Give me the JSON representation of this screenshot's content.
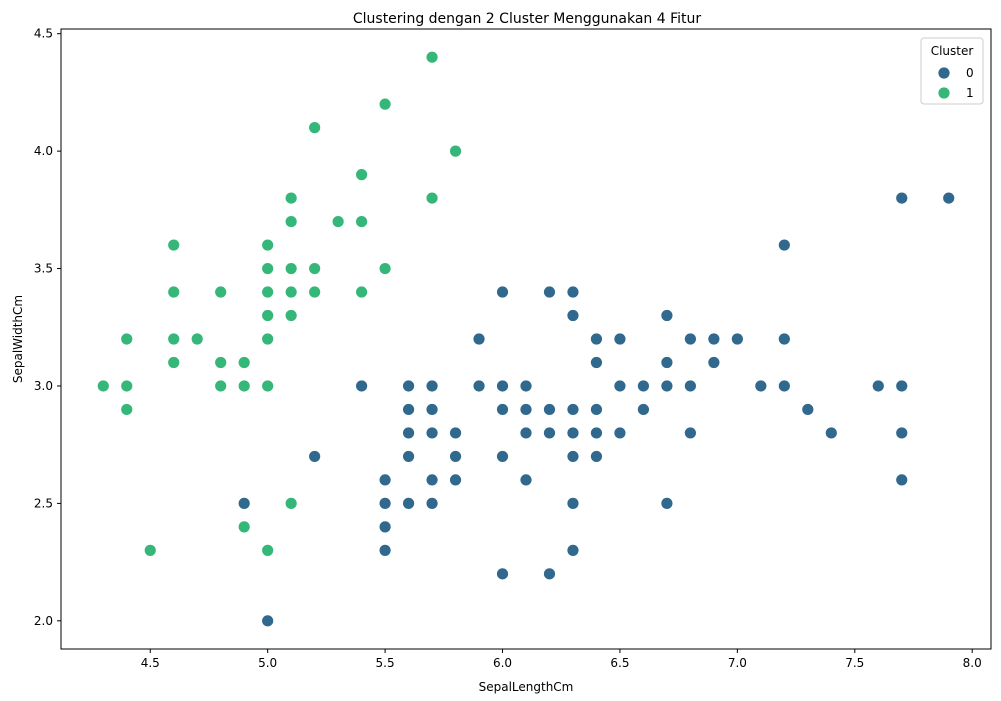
{
  "chart_data": {
    "type": "scatter",
    "title": "Clustering dengan 2 Cluster Menggunakan 4 Fitur",
    "xlabel": "SepalLengthCm",
    "ylabel": "SepalWidthCm",
    "xlim": [
      4.12,
      8.08
    ],
    "ylim": [
      1.88,
      4.52
    ],
    "xticks": [
      "4.5",
      "5.0",
      "5.5",
      "6.0",
      "6.5",
      "7.0",
      "7.5",
      "8.0"
    ],
    "yticks": [
      "2.0",
      "2.5",
      "3.0",
      "3.5",
      "4.0",
      "4.5"
    ],
    "grid": false,
    "legend": {
      "title": "Cluster",
      "position": "top-right"
    },
    "series": [
      {
        "name": "0",
        "color": "#31688e",
        "points": [
          [
            4.9,
            2.5
          ],
          [
            5.0,
            2.0
          ],
          [
            5.2,
            2.7
          ],
          [
            5.4,
            3.0
          ],
          [
            5.5,
            2.3
          ],
          [
            5.5,
            2.4
          ],
          [
            5.5,
            2.5
          ],
          [
            5.5,
            2.6
          ],
          [
            5.6,
            2.5
          ],
          [
            5.6,
            2.7
          ],
          [
            5.6,
            2.8
          ],
          [
            5.6,
            2.9
          ],
          [
            5.6,
            3.0
          ],
          [
            5.7,
            2.5
          ],
          [
            5.7,
            2.6
          ],
          [
            5.7,
            2.8
          ],
          [
            5.7,
            2.9
          ],
          [
            5.7,
            3.0
          ],
          [
            5.8,
            2.6
          ],
          [
            5.8,
            2.7
          ],
          [
            5.8,
            2.8
          ],
          [
            5.9,
            3.0
          ],
          [
            5.9,
            3.2
          ],
          [
            6.0,
            2.2
          ],
          [
            6.0,
            2.7
          ],
          [
            6.0,
            2.9
          ],
          [
            6.0,
            3.0
          ],
          [
            6.0,
            3.4
          ],
          [
            6.1,
            2.6
          ],
          [
            6.1,
            2.8
          ],
          [
            6.1,
            2.9
          ],
          [
            6.1,
            3.0
          ],
          [
            6.2,
            2.2
          ],
          [
            6.2,
            2.8
          ],
          [
            6.2,
            2.9
          ],
          [
            6.2,
            3.4
          ],
          [
            6.3,
            2.3
          ],
          [
            6.3,
            2.5
          ],
          [
            6.3,
            2.7
          ],
          [
            6.3,
            2.8
          ],
          [
            6.3,
            2.9
          ],
          [
            6.3,
            3.3
          ],
          [
            6.3,
            3.4
          ],
          [
            6.4,
            2.7
          ],
          [
            6.4,
            2.8
          ],
          [
            6.4,
            2.9
          ],
          [
            6.4,
            3.1
          ],
          [
            6.4,
            3.2
          ],
          [
            6.5,
            2.8
          ],
          [
            6.5,
            3.0
          ],
          [
            6.5,
            3.2
          ],
          [
            6.6,
            2.9
          ],
          [
            6.6,
            3.0
          ],
          [
            6.7,
            2.5
          ],
          [
            6.7,
            3.0
          ],
          [
            6.7,
            3.1
          ],
          [
            6.7,
            3.3
          ],
          [
            6.8,
            2.8
          ],
          [
            6.8,
            3.0
          ],
          [
            6.8,
            3.2
          ],
          [
            6.9,
            3.1
          ],
          [
            6.9,
            3.2
          ],
          [
            7.0,
            3.2
          ],
          [
            7.1,
            3.0
          ],
          [
            7.2,
            3.0
          ],
          [
            7.2,
            3.2
          ],
          [
            7.2,
            3.6
          ],
          [
            7.3,
            2.9
          ],
          [
            7.4,
            2.8
          ],
          [
            7.6,
            3.0
          ],
          [
            7.7,
            2.6
          ],
          [
            7.7,
            2.8
          ],
          [
            7.7,
            3.0
          ],
          [
            7.7,
            3.8
          ],
          [
            7.9,
            3.8
          ]
        ]
      },
      {
        "name": "1",
        "color": "#35b779",
        "points": [
          [
            4.3,
            3.0
          ],
          [
            4.4,
            2.9
          ],
          [
            4.4,
            3.0
          ],
          [
            4.4,
            3.2
          ],
          [
            4.5,
            2.3
          ],
          [
            4.6,
            3.1
          ],
          [
            4.6,
            3.2
          ],
          [
            4.6,
            3.4
          ],
          [
            4.6,
            3.6
          ],
          [
            4.7,
            3.2
          ],
          [
            4.8,
            3.0
          ],
          [
            4.8,
            3.1
          ],
          [
            4.8,
            3.4
          ],
          [
            4.9,
            2.4
          ],
          [
            4.9,
            3.0
          ],
          [
            4.9,
            3.1
          ],
          [
            5.0,
            2.3
          ],
          [
            5.0,
            3.0
          ],
          [
            5.0,
            3.2
          ],
          [
            5.0,
            3.3
          ],
          [
            5.0,
            3.4
          ],
          [
            5.0,
            3.5
          ],
          [
            5.0,
            3.6
          ],
          [
            5.1,
            2.5
          ],
          [
            5.1,
            3.3
          ],
          [
            5.1,
            3.4
          ],
          [
            5.1,
            3.5
          ],
          [
            5.1,
            3.7
          ],
          [
            5.1,
            3.8
          ],
          [
            5.2,
            3.4
          ],
          [
            5.2,
            3.5
          ],
          [
            5.2,
            4.1
          ],
          [
            5.3,
            3.7
          ],
          [
            5.4,
            3.4
          ],
          [
            5.4,
            3.7
          ],
          [
            5.4,
            3.9
          ],
          [
            5.5,
            3.5
          ],
          [
            5.5,
            4.2
          ],
          [
            5.7,
            3.8
          ],
          [
            5.7,
            4.4
          ],
          [
            5.8,
            4.0
          ]
        ]
      }
    ]
  }
}
